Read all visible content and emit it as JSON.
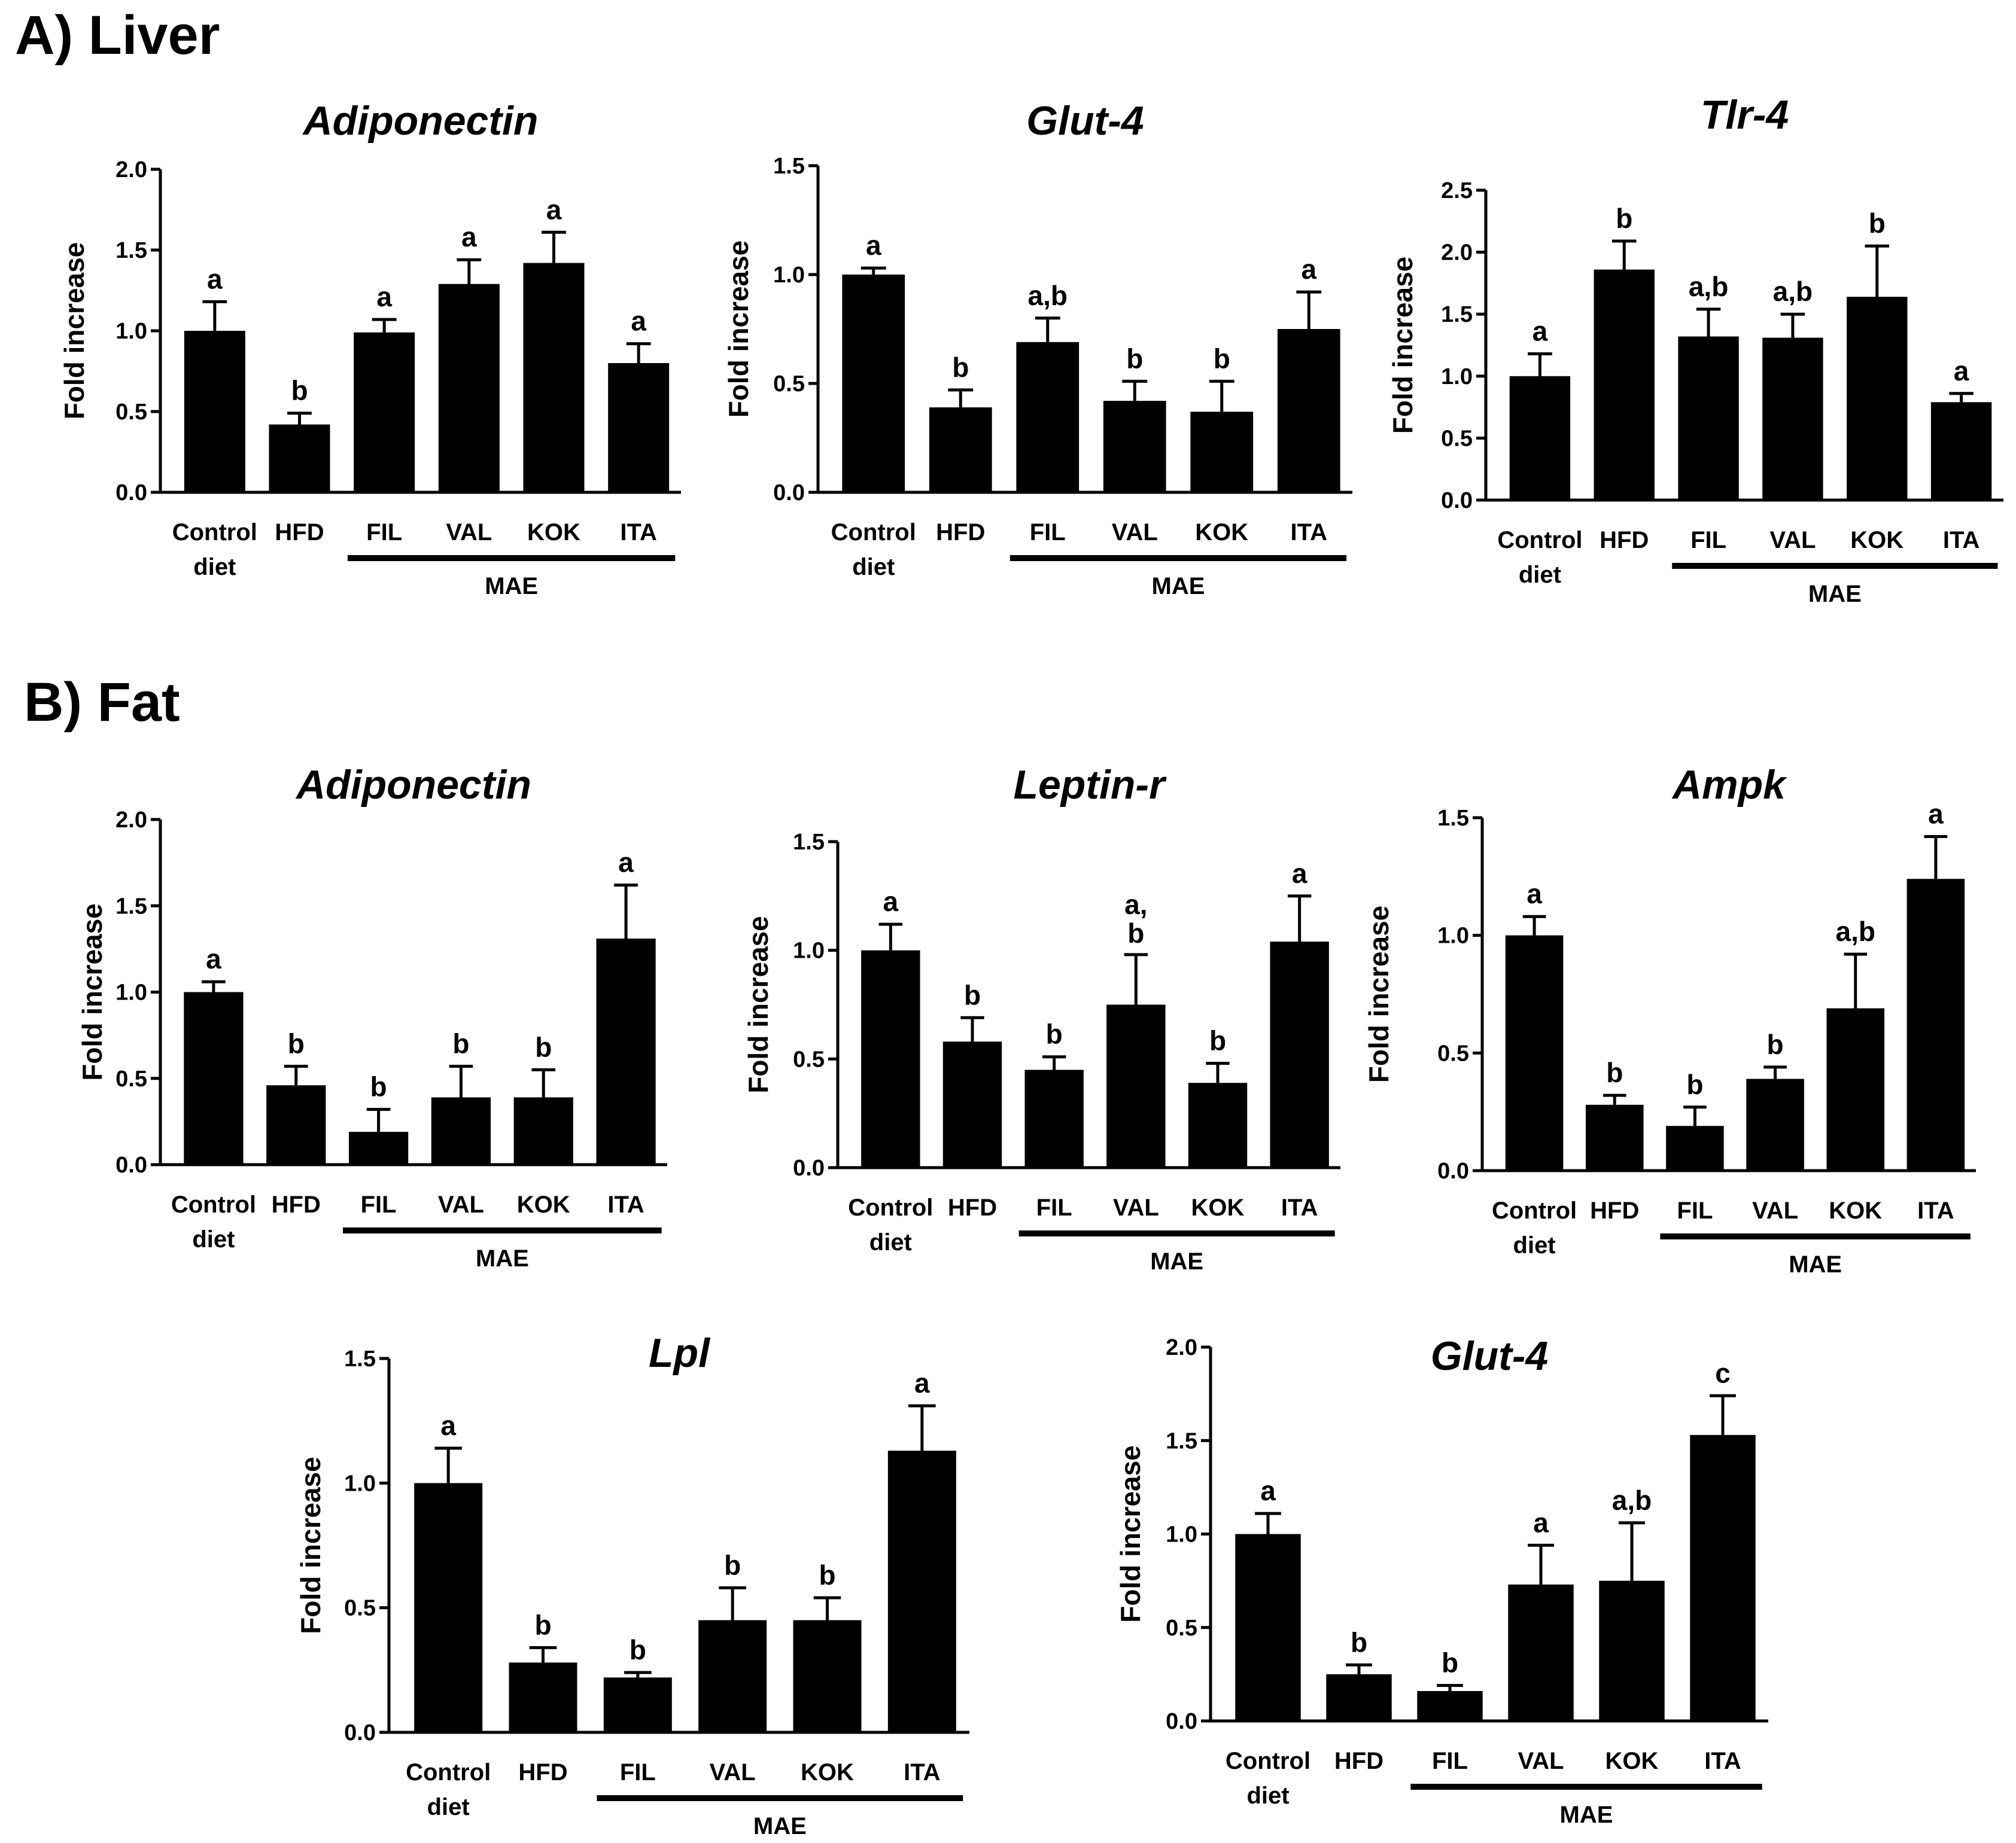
{
  "panels": [
    {
      "label": "A) Liver"
    },
    {
      "label": "B) Fat"
    }
  ],
  "chart_data": [
    {
      "type": "bar",
      "panel": "A) Liver",
      "title": "Adiponectin",
      "ylabel": "Fold increase",
      "categories": [
        "Control diet",
        "HFD",
        "FIL",
        "VAL",
        "KOK",
        "ITA"
      ],
      "values": [
        1.0,
        0.42,
        0.99,
        1.29,
        1.42,
        0.8
      ],
      "errors": [
        0.18,
        0.07,
        0.08,
        0.15,
        0.19,
        0.12
      ],
      "significance": [
        "a",
        "b",
        "a",
        "a",
        "a",
        "a"
      ],
      "ylim": [
        0,
        2.0
      ],
      "yticks": [
        "0.0",
        "0.5",
        "1.0",
        "1.5",
        "2.0"
      ],
      "group": {
        "label": "MAE",
        "from": "FIL",
        "to": "ITA"
      }
    },
    {
      "type": "bar",
      "panel": "A) Liver",
      "title": "Glut-4",
      "ylabel": "Fold increase",
      "categories": [
        "Control diet",
        "HFD",
        "FIL",
        "VAL",
        "KOK",
        "ITA"
      ],
      "values": [
        1.0,
        0.39,
        0.69,
        0.42,
        0.37,
        0.75
      ],
      "errors": [
        0.03,
        0.08,
        0.11,
        0.09,
        0.14,
        0.17
      ],
      "significance": [
        "a",
        "b",
        "a,b",
        "b",
        "b",
        "a"
      ],
      "ylim": [
        0,
        1.5
      ],
      "yticks": [
        "0.0",
        "0.5",
        "1.0",
        "1.5"
      ],
      "group": {
        "label": "MAE",
        "from": "FIL",
        "to": "ITA"
      }
    },
    {
      "type": "bar",
      "panel": "A) Liver",
      "title": "Tlr-4",
      "ylabel": "Fold increase",
      "categories": [
        "Control diet",
        "HFD",
        "FIL",
        "VAL",
        "KOK",
        "ITA"
      ],
      "values": [
        1.0,
        1.86,
        1.32,
        1.31,
        1.64,
        0.79
      ],
      "errors": [
        0.18,
        0.23,
        0.22,
        0.19,
        0.41,
        0.07
      ],
      "significance": [
        "a",
        "b",
        "a,b",
        "a,b",
        "b",
        "a"
      ],
      "ylim": [
        0,
        2.5
      ],
      "yticks": [
        "0.0",
        "0.5",
        "1.0",
        "1.5",
        "2.0",
        "2.5"
      ],
      "group": {
        "label": "MAE",
        "from": "FIL",
        "to": "ITA"
      }
    },
    {
      "type": "bar",
      "panel": "B) Fat",
      "title": "Adiponectin",
      "ylabel": "Fold increase",
      "categories": [
        "Control diet",
        "HFD",
        "FIL",
        "VAL",
        "KOK",
        "ITA"
      ],
      "values": [
        1.0,
        0.46,
        0.19,
        0.39,
        0.39,
        1.31
      ],
      "errors": [
        0.06,
        0.11,
        0.13,
        0.18,
        0.16,
        0.31
      ],
      "significance": [
        "a",
        "b",
        "b",
        "b",
        "b",
        "a"
      ],
      "ylim": [
        0,
        2.0
      ],
      "yticks": [
        "0.0",
        "0.5",
        "1.0",
        "1.5",
        "2.0"
      ],
      "group": {
        "label": "MAE",
        "from": "FIL",
        "to": "ITA"
      }
    },
    {
      "type": "bar",
      "panel": "B) Fat",
      "title": "Leptin-r",
      "ylabel": "Fold increase",
      "categories": [
        "Control diet",
        "HFD",
        "FIL",
        "VAL",
        "KOK",
        "ITA"
      ],
      "values": [
        1.0,
        0.58,
        0.45,
        0.75,
        0.39,
        1.04
      ],
      "errors": [
        0.12,
        0.11,
        0.06,
        0.23,
        0.09,
        0.21
      ],
      "significance": [
        "a",
        "b",
        "b",
        "a,\nb",
        "b",
        "a"
      ],
      "ylim": [
        0,
        1.5
      ],
      "yticks": [
        "0.0",
        "0.5",
        "1.0",
        "1.5"
      ],
      "group": {
        "label": "MAE",
        "from": "FIL",
        "to": "ITA"
      }
    },
    {
      "type": "bar",
      "panel": "B) Fat",
      "title": "Ampk",
      "ylabel": "Fold increase",
      "categories": [
        "Control diet",
        "HFD",
        "FIL",
        "VAL",
        "KOK",
        "ITA"
      ],
      "values": [
        1.0,
        0.28,
        0.19,
        0.39,
        0.69,
        1.24
      ],
      "errors": [
        0.08,
        0.04,
        0.08,
        0.05,
        0.23,
        0.18
      ],
      "significance": [
        "a",
        "b",
        "b",
        "b",
        "a,b",
        "a"
      ],
      "ylim": [
        0,
        1.5
      ],
      "yticks": [
        "0.0",
        "0.5",
        "1.0",
        "1.5"
      ],
      "group": {
        "label": "MAE",
        "from": "FIL",
        "to": "ITA"
      }
    },
    {
      "type": "bar",
      "panel": "B) Fat",
      "title": "Lpl",
      "ylabel": "Fold increase",
      "categories": [
        "Control diet",
        "HFD",
        "FIL",
        "VAL",
        "KOK",
        "ITA"
      ],
      "values": [
        1.0,
        0.28,
        0.22,
        0.45,
        0.45,
        1.13
      ],
      "errors": [
        0.14,
        0.06,
        0.02,
        0.13,
        0.09,
        0.18
      ],
      "significance": [
        "a",
        "b",
        "b",
        "b",
        "b",
        "a"
      ],
      "ylim": [
        0,
        1.5
      ],
      "yticks": [
        "0.0",
        "0.5",
        "1.0",
        "1.5"
      ],
      "group": {
        "label": "MAE",
        "from": "FIL",
        "to": "ITA"
      }
    },
    {
      "type": "bar",
      "panel": "B) Fat",
      "title": "Glut-4",
      "ylabel": "Fold increase",
      "categories": [
        "Control diet",
        "HFD",
        "FIL",
        "VAL",
        "KOK",
        "ITA"
      ],
      "values": [
        1.0,
        0.25,
        0.16,
        0.73,
        0.75,
        1.53
      ],
      "errors": [
        0.11,
        0.05,
        0.03,
        0.21,
        0.31,
        0.21
      ],
      "significance": [
        "a",
        "b",
        "b",
        "a",
        "a,b",
        "c"
      ],
      "ylim": [
        0,
        2.0
      ],
      "yticks": [
        "0.0",
        "0.5",
        "1.0",
        "1.5",
        "2.0"
      ],
      "group": {
        "label": "MAE",
        "from": "FIL",
        "to": "ITA"
      }
    }
  ]
}
